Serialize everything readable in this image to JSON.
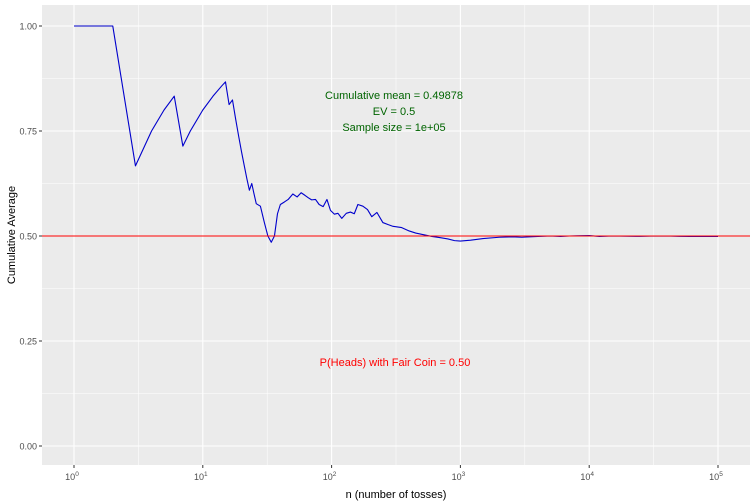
{
  "chart_data": {
    "type": "line",
    "x_scale": "log10",
    "xlabel": "n (number of tosses)",
    "ylabel": "Cumulative Average",
    "xlim": [
      1,
      100000
    ],
    "ylim": [
      0,
      1
    ],
    "x_ticks": [
      {
        "value": 1,
        "base": "10",
        "exp": "0"
      },
      {
        "value": 10,
        "base": "10",
        "exp": "1"
      },
      {
        "value": 100,
        "base": "10",
        "exp": "2"
      },
      {
        "value": 1000,
        "base": "10",
        "exp": "3"
      },
      {
        "value": 10000,
        "base": "10",
        "exp": "4"
      },
      {
        "value": 100000,
        "base": "10",
        "exp": "5"
      }
    ],
    "y_ticks": [
      {
        "value": 0,
        "label": "0.00"
      },
      {
        "value": 0.25,
        "label": "0.25"
      },
      {
        "value": 0.5,
        "label": "0.50"
      },
      {
        "value": 0.75,
        "label": "0.75"
      },
      {
        "value": 1,
        "label": "1.00"
      }
    ],
    "grid": true,
    "series": [
      {
        "color": "#0000cc",
        "x": [
          1,
          2,
          3,
          4,
          5,
          6,
          7,
          8,
          10,
          12,
          14,
          15,
          16,
          17,
          18,
          19,
          20,
          21,
          22,
          23,
          24,
          25,
          26,
          28,
          30,
          32,
          34,
          36,
          38,
          40,
          43,
          46,
          50,
          54,
          58,
          62,
          66,
          70,
          75,
          80,
          86,
          92,
          98,
          105,
          112,
          120,
          130,
          140,
          150,
          160,
          175,
          190,
          205,
          225,
          250,
          275,
          300,
          350,
          400,
          450,
          500,
          600,
          700,
          800,
          900,
          1000,
          1200,
          1500,
          2000,
          2500,
          3000,
          4000,
          5000,
          6000,
          7000,
          8000,
          10000,
          12000,
          15000,
          20000,
          25000,
          30000,
          40000,
          50000,
          60000,
          70000,
          80000,
          90000,
          100000
        ],
        "y": [
          1.0,
          1.0,
          0.667,
          0.75,
          0.8,
          0.833,
          0.714,
          0.75,
          0.8,
          0.833,
          0.857,
          0.867,
          0.813,
          0.824,
          0.778,
          0.737,
          0.7,
          0.667,
          0.636,
          0.609,
          0.625,
          0.6,
          0.577,
          0.571,
          0.533,
          0.5,
          0.485,
          0.5,
          0.553,
          0.575,
          0.581,
          0.587,
          0.6,
          0.593,
          0.603,
          0.597,
          0.591,
          0.586,
          0.587,
          0.575,
          0.57,
          0.587,
          0.561,
          0.552,
          0.554,
          0.542,
          0.554,
          0.557,
          0.553,
          0.575,
          0.571,
          0.563,
          0.546,
          0.556,
          0.532,
          0.527,
          0.523,
          0.52,
          0.512,
          0.507,
          0.504,
          0.499,
          0.496,
          0.493,
          0.489,
          0.488,
          0.49,
          0.494,
          0.497,
          0.498,
          0.497,
          0.499,
          0.5,
          0.499,
          0.5,
          0.5005,
          0.501,
          0.499,
          0.5,
          0.4995,
          0.4992,
          0.4998,
          0.5,
          0.4993,
          0.499,
          0.4989,
          0.4988,
          0.4988,
          0.49878
        ]
      }
    ],
    "hline": {
      "y": 0.5,
      "color": "#ff0000"
    },
    "annotations": {
      "mean_text": "Cumulative mean = 0.49878",
      "ev_text": "EV = 0.5",
      "sample_text": "Sample size = 1e+05",
      "fair_coin_text": "P(Heads) with Fair Coin = 0.50",
      "stats_color": "#006400",
      "fair_coin_color": "#ff0000"
    },
    "colors": {
      "panel_bg": "#ebebeb",
      "grid_major": "#ffffff",
      "axis_text": "#4d4d4d"
    }
  }
}
